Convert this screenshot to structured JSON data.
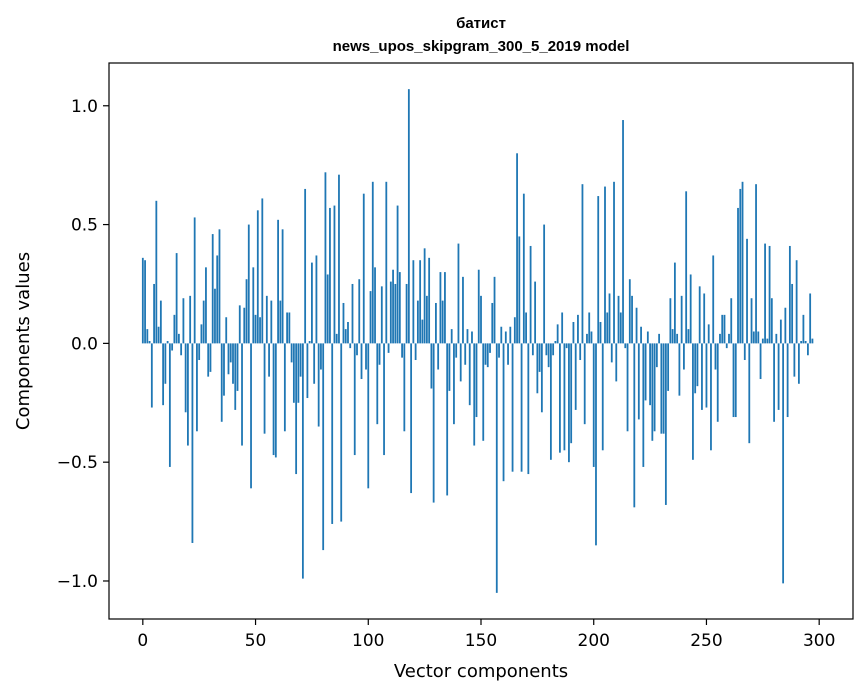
{
  "chart_data": {
    "type": "bar",
    "title": "батист",
    "subtitle": "news_upos_skipgram_300_5_2019 model",
    "xlabel": "Vector components",
    "ylabel": "Components values",
    "xlim": [
      -15,
      315
    ],
    "ylim": [
      -1.16,
      1.18
    ],
    "xticks": [
      0,
      50,
      100,
      150,
      200,
      250,
      300
    ],
    "xtick_labels": [
      "0",
      "50",
      "100",
      "150",
      "200",
      "250",
      "300"
    ],
    "yticks": [
      -1.0,
      -0.5,
      0.0,
      0.5,
      1.0
    ],
    "ytick_labels": [
      "−1.0",
      "−0.5",
      "0.0",
      "0.5",
      "1.0"
    ],
    "grid": false,
    "bar_color": "#1f77b4",
    "values": [
      0.36,
      0.35,
      0.06,
      0.01,
      -0.27,
      0.25,
      0.6,
      0.07,
      0.18,
      -0.26,
      -0.17,
      0.01,
      -0.52,
      -0.03,
      0.12,
      0.38,
      0.04,
      -0.05,
      0.19,
      -0.29,
      -0.43,
      0.2,
      -0.84,
      0.53,
      -0.37,
      -0.07,
      0.08,
      0.18,
      0.32,
      -0.14,
      -0.12,
      0.46,
      0.23,
      0.37,
      0.48,
      -0.33,
      -0.22,
      0.11,
      -0.13,
      -0.08,
      -0.17,
      -0.28,
      -0.2,
      0.16,
      -0.43,
      0.15,
      0.27,
      0.5,
      -0.61,
      0.32,
      0.12,
      0.56,
      0.11,
      0.61,
      -0.38,
      0.2,
      -0.14,
      0.18,
      -0.47,
      -0.48,
      0.52,
      0.18,
      0.48,
      -0.37,
      0.13,
      0.13,
      -0.08,
      -0.25,
      -0.55,
      -0.25,
      -0.14,
      -0.99,
      0.65,
      -0.23,
      0.01,
      0.34,
      -0.17,
      0.37,
      -0.35,
      -0.11,
      -0.87,
      0.72,
      0.29,
      0.57,
      -0.76,
      0.58,
      0.04,
      0.71,
      -0.75,
      0.17,
      0.06,
      0.09,
      -0.02,
      0.25,
      -0.47,
      -0.05,
      0.27,
      -0.15,
      0.63,
      -0.11,
      -0.61,
      0.22,
      0.68,
      0.32,
      -0.34,
      -0.09,
      0.24,
      -0.47,
      0.68,
      -0.04,
      0.26,
      0.31,
      0.25,
      0.58,
      0.3,
      -0.06,
      -0.37,
      0.25,
      1.07,
      -0.63,
      0.35,
      -0.07,
      0.18,
      0.35,
      0.1,
      0.4,
      0.2,
      0.36,
      -0.19,
      -0.67,
      0.17,
      -0.11,
      0.3,
      0.18,
      0.3,
      -0.64,
      -0.2,
      0.06,
      -0.34,
      -0.06,
      0.42,
      -0.16,
      0.28,
      -0.09,
      0.06,
      -0.26,
      0.05,
      -0.43,
      -0.31,
      0.31,
      0.2,
      -0.41,
      -0.09,
      -0.1,
      -0.04,
      0.17,
      0.28,
      -1.05,
      -0.06,
      0.07,
      -0.58,
      0.05,
      -0.09,
      0.07,
      -0.54,
      0.11,
      0.8,
      0.45,
      -0.54,
      0.63,
      0.13,
      -0.55,
      0.41,
      -0.05,
      0.26,
      -0.21,
      -0.12,
      -0.29,
      0.5,
      -0.05,
      -0.1,
      -0.49,
      -0.05,
      0.01,
      0.08,
      -0.46,
      0.13,
      -0.45,
      -0.02,
      -0.5,
      -0.42,
      0.09,
      -0.28,
      0.12,
      -0.07,
      0.67,
      -0.34,
      0.04,
      0.13,
      0.05,
      -0.52,
      -0.85,
      0.62,
      0.09,
      -0.45,
      0.66,
      0.13,
      0.21,
      -0.08,
      0.68,
      -0.16,
      0.2,
      0.13,
      0.94,
      -0.02,
      -0.37,
      0.27,
      0.2,
      -0.69,
      0.15,
      -0.32,
      0.07,
      -0.52,
      -0.24,
      0.05,
      -0.26,
      -0.41,
      -0.37,
      -0.1,
      0.04,
      -0.38,
      -0.38,
      -0.68,
      -0.2,
      0.19,
      0.06,
      0.34,
      0.04,
      -0.22,
      0.2,
      -0.11,
      0.64,
      0.06,
      0.29,
      -0.49,
      -0.21,
      -0.18,
      0.24,
      -0.28,
      0.21,
      -0.27,
      0.08,
      -0.45,
      0.37,
      -0.11,
      -0.33,
      0.04,
      0.12,
      0.12,
      -0.02,
      0.04,
      0.19,
      -0.31,
      -0.31,
      0.57,
      0.65,
      0.68,
      -0.07,
      0.44,
      -0.42,
      0.19,
      0.05,
      0.67,
      0.05,
      -0.15,
      0.02,
      0.42,
      0.02,
      0.41,
      0.19,
      -0.33,
      0.04,
      -0.28,
      0.1,
      -1.01,
      0.15,
      -0.31,
      0.41,
      0.25,
      -0.14,
      0.35,
      -0.17,
      0.01,
      0.12,
      0.01,
      -0.05,
      0.21,
      0.02
    ]
  }
}
